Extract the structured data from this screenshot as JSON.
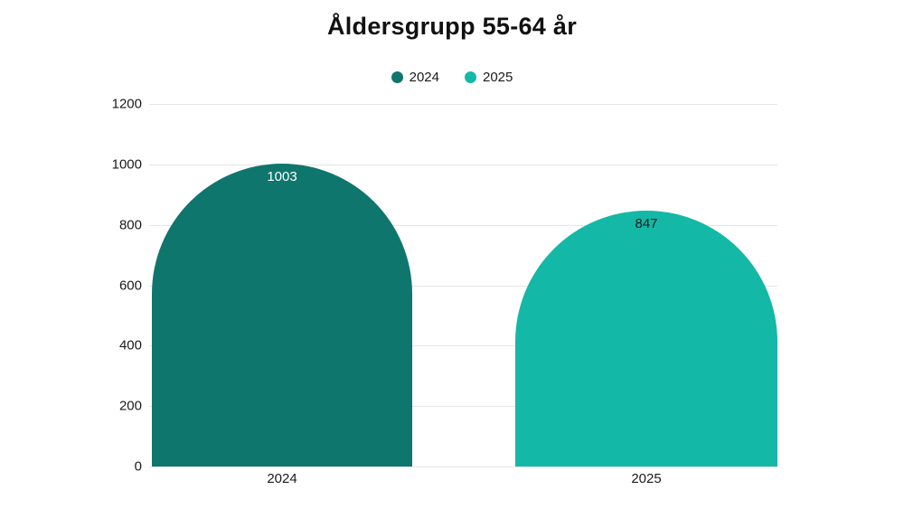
{
  "title": "Åldersgrupp 55-64 år",
  "legend": {
    "position": "top",
    "items": [
      {
        "label": "2024",
        "color": "#0f766e"
      },
      {
        "label": "2025",
        "color": "#14b8a6"
      }
    ]
  },
  "chart_data": {
    "type": "bar",
    "title": "Åldersgrupp 55-64 år",
    "categories": [
      "2024",
      "2025"
    ],
    "values": [
      1003,
      847
    ],
    "series_colors": [
      "#0f766e",
      "#14b8a6"
    ],
    "value_label_colors": [
      "#ffffff",
      "#1a1a1a"
    ],
    "xlabel": "",
    "ylabel": "",
    "ylim": [
      0,
      1200
    ],
    "yticks": [
      0,
      200,
      400,
      600,
      800,
      1000,
      1200
    ],
    "grid": true,
    "grid_color": "#e6e6e6",
    "background_color": "#ffffff",
    "bar_shape": "rounded-dome-top",
    "legend_position": "top"
  }
}
